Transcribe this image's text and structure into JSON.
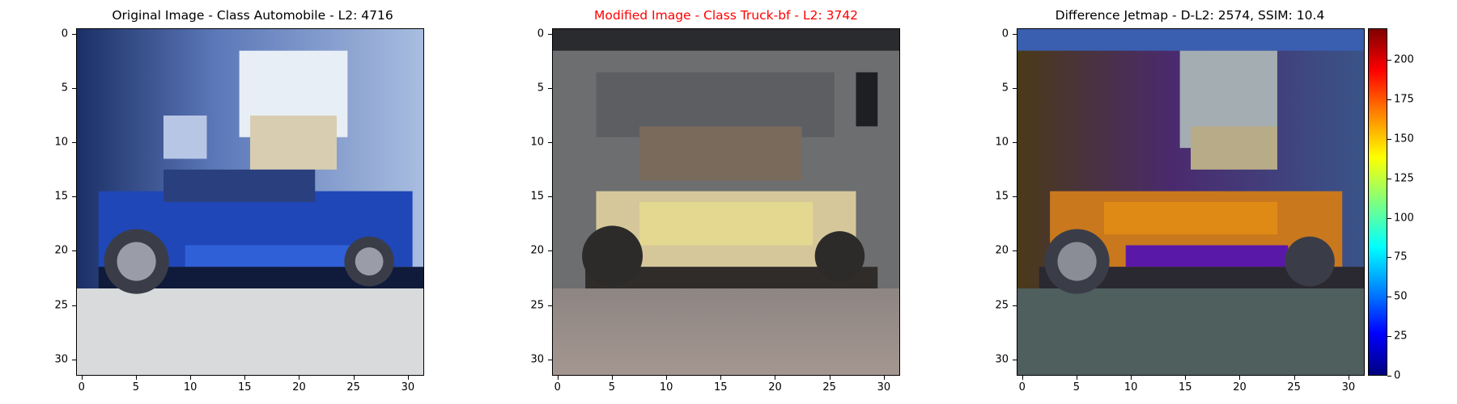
{
  "panels": [
    {
      "title": "Original Image - Class Automobile - L2: 4716",
      "title_color": "#000000"
    },
    {
      "title": "Modified Image - Class Truck-bf - L2: 3742",
      "title_color": "#ff0000"
    },
    {
      "title": "Difference Jetmap - D-L2: 2574, SSIM: 10.4",
      "title_color": "#000000"
    }
  ],
  "axis_ticks": {
    "y": [
      "0",
      "5",
      "10",
      "15",
      "20",
      "25",
      "30"
    ],
    "x": [
      "0",
      "5",
      "10",
      "15",
      "20",
      "25",
      "30"
    ]
  },
  "colorbar": {
    "colormap": "jet",
    "range": [
      0,
      220
    ],
    "ticks": [
      "0",
      "25",
      "50",
      "75",
      "100",
      "125",
      "150",
      "175",
      "200"
    ]
  }
}
